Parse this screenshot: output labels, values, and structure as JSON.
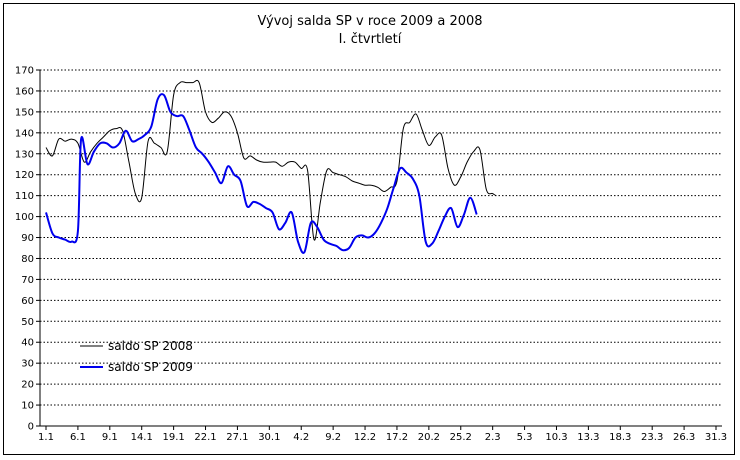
{
  "chart_data": {
    "type": "line",
    "title": "Vývoj salda SP v roce 2009 a 2008",
    "subtitle": "I. čtvrtletí",
    "xlabel": "",
    "ylabel": "",
    "ylim": [
      0,
      170
    ],
    "y_ticks": [
      0,
      10,
      20,
      30,
      40,
      50,
      60,
      70,
      80,
      90,
      100,
      110,
      120,
      130,
      140,
      150,
      160,
      170
    ],
    "x_ticks": [
      "1.1",
      "6.1",
      "9.1",
      "14.1",
      "19.1",
      "22.1",
      "27.1",
      "30.1",
      "4.2",
      "9.2",
      "12.2",
      "17.2",
      "20.2",
      "25.2",
      "2.3",
      "5.3",
      "10.3",
      "13.3",
      "18.3",
      "23.3",
      "26.3",
      "31.3"
    ],
    "grid": "horizontal dotted",
    "legend_position": "bottom-left",
    "series": [
      {
        "name": "saldo SP 2008",
        "color": "#000000",
        "points": [
          [
            0,
            133
          ],
          [
            0.2,
            129
          ],
          [
            0.4,
            137
          ],
          [
            0.6,
            136
          ],
          [
            0.8,
            137
          ],
          [
            1.0,
            135
          ],
          [
            1.2,
            126
          ],
          [
            1.4,
            131
          ],
          [
            1.6,
            135
          ],
          [
            1.8,
            138
          ],
          [
            2.0,
            141
          ],
          [
            2.2,
            142
          ],
          [
            2.4,
            141
          ],
          [
            2.6,
            126
          ],
          [
            2.8,
            111
          ],
          [
            3.0,
            109
          ],
          [
            3.2,
            136
          ],
          [
            3.4,
            135
          ],
          [
            3.6,
            133
          ],
          [
            3.8,
            131
          ],
          [
            4.0,
            158
          ],
          [
            4.2,
            164
          ],
          [
            4.4,
            164
          ],
          [
            4.6,
            164
          ],
          [
            4.8,
            164
          ],
          [
            5.0,
            150
          ],
          [
            5.2,
            145
          ],
          [
            5.4,
            147
          ],
          [
            5.6,
            150
          ],
          [
            5.8,
            148
          ],
          [
            6.0,
            140
          ],
          [
            6.2,
            128
          ],
          [
            6.4,
            129
          ],
          [
            6.6,
            127
          ],
          [
            6.8,
            126
          ],
          [
            7.0,
            126
          ],
          [
            7.2,
            126
          ],
          [
            7.4,
            124
          ],
          [
            7.6,
            126
          ],
          [
            7.8,
            126
          ],
          [
            8.0,
            123
          ],
          [
            8.2,
            122
          ],
          [
            8.4,
            89
          ],
          [
            8.6,
            107
          ],
          [
            8.8,
            122
          ],
          [
            9.0,
            121
          ],
          [
            9.2,
            120
          ],
          [
            9.4,
            119
          ],
          [
            9.6,
            117
          ],
          [
            9.8,
            116
          ],
          [
            10.0,
            115
          ],
          [
            10.2,
            115
          ],
          [
            10.4,
            114
          ],
          [
            10.6,
            112
          ],
          [
            10.8,
            114
          ],
          [
            11.0,
            117
          ],
          [
            11.2,
            142
          ],
          [
            11.4,
            145
          ],
          [
            11.6,
            149
          ],
          [
            11.8,
            141
          ],
          [
            12.0,
            134
          ],
          [
            12.2,
            138
          ],
          [
            12.4,
            139
          ],
          [
            12.6,
            123
          ],
          [
            12.8,
            115
          ],
          [
            13.0,
            119
          ],
          [
            13.2,
            126
          ],
          [
            13.4,
            131
          ],
          [
            13.6,
            132
          ],
          [
            13.8,
            113
          ],
          [
            14.0,
            111
          ],
          [
            14.1,
            110
          ]
        ]
      },
      {
        "name": "saldo SP 2009",
        "color": "#0000ee",
        "points": [
          [
            0,
            102
          ],
          [
            0.2,
            92
          ],
          [
            0.4,
            90
          ],
          [
            0.6,
            89
          ],
          [
            0.8,
            88
          ],
          [
            1.0,
            93
          ],
          [
            1.1,
            137
          ],
          [
            1.3,
            125
          ],
          [
            1.5,
            131
          ],
          [
            1.7,
            135
          ],
          [
            1.9,
            135
          ],
          [
            2.1,
            133
          ],
          [
            2.3,
            135
          ],
          [
            2.5,
            141
          ],
          [
            2.7,
            136
          ],
          [
            2.9,
            137
          ],
          [
            3.1,
            139
          ],
          [
            3.3,
            143
          ],
          [
            3.5,
            156
          ],
          [
            3.7,
            158
          ],
          [
            3.9,
            150
          ],
          [
            4.1,
            148
          ],
          [
            4.3,
            148
          ],
          [
            4.5,
            141
          ],
          [
            4.7,
            133
          ],
          [
            4.9,
            130
          ],
          [
            5.1,
            126
          ],
          [
            5.3,
            121
          ],
          [
            5.5,
            116
          ],
          [
            5.7,
            124
          ],
          [
            5.9,
            120
          ],
          [
            6.1,
            117
          ],
          [
            6.3,
            105
          ],
          [
            6.5,
            107
          ],
          [
            6.7,
            106
          ],
          [
            6.9,
            104
          ],
          [
            7.1,
            102
          ],
          [
            7.3,
            94
          ],
          [
            7.5,
            97
          ],
          [
            7.7,
            102
          ],
          [
            7.9,
            88
          ],
          [
            8.1,
            83
          ],
          [
            8.3,
            97
          ],
          [
            8.5,
            95
          ],
          [
            8.7,
            89
          ],
          [
            8.9,
            87
          ],
          [
            9.1,
            86
          ],
          [
            9.3,
            84
          ],
          [
            9.5,
            85
          ],
          [
            9.7,
            90
          ],
          [
            9.9,
            91
          ],
          [
            10.1,
            90
          ],
          [
            10.3,
            92
          ],
          [
            10.5,
            97
          ],
          [
            10.7,
            104
          ],
          [
            10.9,
            114
          ],
          [
            11.1,
            123
          ],
          [
            11.3,
            121
          ],
          [
            11.5,
            118
          ],
          [
            11.7,
            110
          ],
          [
            11.9,
            88
          ],
          [
            12.1,
            87
          ],
          [
            12.3,
            93
          ],
          [
            12.5,
            100
          ],
          [
            12.7,
            104
          ],
          [
            12.9,
            95
          ],
          [
            13.1,
            101
          ],
          [
            13.3,
            109
          ],
          [
            13.5,
            101
          ]
        ]
      }
    ]
  }
}
